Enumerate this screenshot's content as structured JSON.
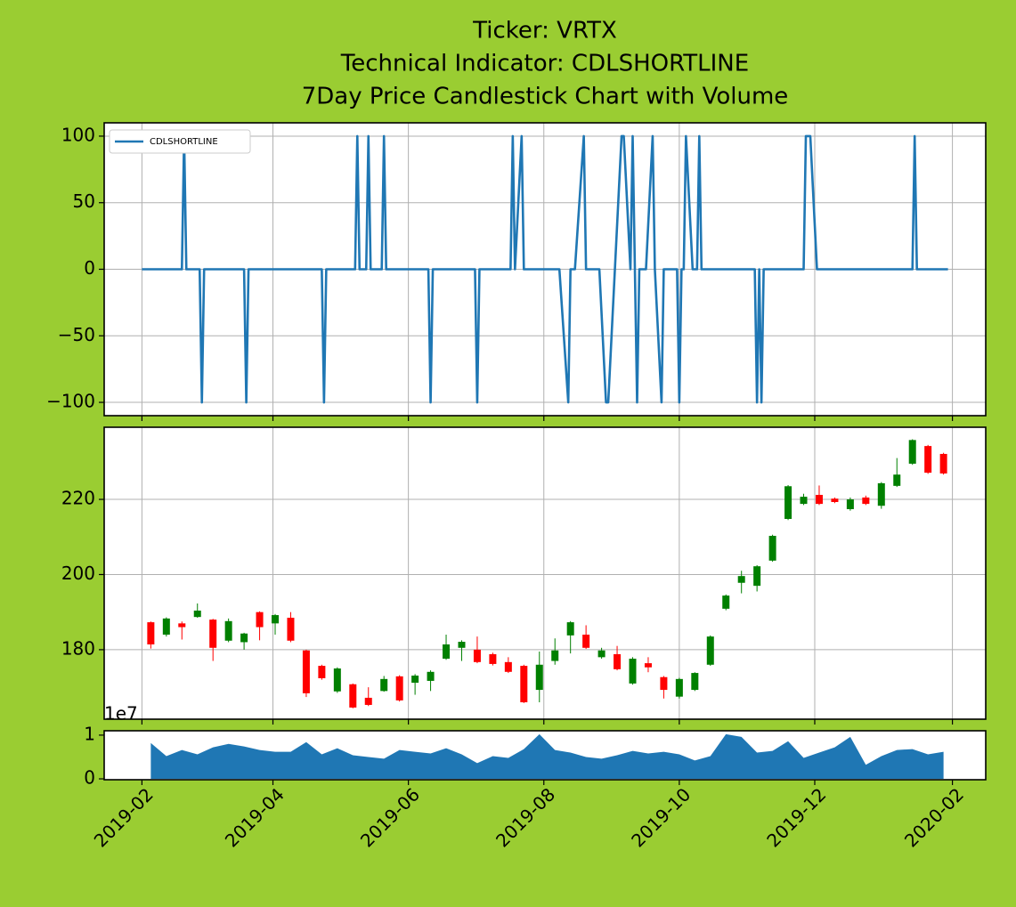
{
  "title": [
    "Ticker: VRTX",
    "Technical Indicator: CDLSHORTLINE",
    "7Day Price Candlestick Chart with Volume"
  ],
  "chart_data": [
    {
      "type": "line",
      "xlim": [
        "2019-01-15",
        "2020-02-16"
      ],
      "ylim": [
        -110,
        110
      ],
      "xticks": [
        "2019-02-01",
        "2019-04-01",
        "2019-06-01",
        "2019-08-01",
        "2019-10-01",
        "2019-12-01",
        "2020-02-01"
      ],
      "yticks": [
        {
          "value": -100,
          "label": "−100"
        },
        {
          "value": -50,
          "label": "−50"
        },
        0,
        50,
        100
      ],
      "grid": true,
      "legend": "upper left",
      "x": [
        "2019-02-01",
        "2019-02-19",
        "2019-02-20",
        "2019-02-21",
        "2019-02-27",
        "2019-02-28",
        "2019-03-01",
        "2019-03-19",
        "2019-03-20",
        "2019-03-21",
        "2019-04-23",
        "2019-04-24",
        "2019-04-25",
        "2019-05-08",
        "2019-05-09",
        "2019-05-10",
        "2019-05-13",
        "2019-05-14",
        "2019-05-15",
        "2019-05-20",
        "2019-05-21",
        "2019-05-22",
        "2019-06-10",
        "2019-06-11",
        "2019-06-12",
        "2019-07-01",
        "2019-07-02",
        "2019-07-03",
        "2019-07-17",
        "2019-07-18",
        "2019-07-19",
        "2019-07-22",
        "2019-07-23",
        "2019-08-08",
        "2019-08-12",
        "2019-08-13",
        "2019-08-15",
        "2019-08-19",
        "2019-08-20",
        "2019-08-26",
        "2019-08-29",
        "2019-08-30",
        "2019-09-05",
        "2019-09-06",
        "2019-09-09",
        "2019-09-10",
        "2019-09-12",
        "2019-09-13",
        "2019-09-16",
        "2019-09-19",
        "2019-09-20",
        "2019-09-23",
        "2019-09-24",
        "2019-09-30",
        "2019-10-01",
        "2019-10-02",
        "2019-10-03",
        "2019-10-04",
        "2019-10-07",
        "2019-10-09",
        "2019-10-10",
        "2019-10-11",
        "2019-11-04",
        "2019-11-05",
        "2019-11-06",
        "2019-11-07",
        "2019-11-08",
        "2019-11-26",
        "2019-11-27",
        "2019-11-29",
        "2019-12-02",
        "2020-01-14",
        "2020-01-15",
        "2020-01-16",
        "2020-01-30"
      ],
      "series": [
        {
          "name": "CDLSHORTLINE",
          "color": "#1f77b4",
          "values": [
            0,
            0,
            100,
            0,
            0,
            -100,
            0,
            0,
            -100,
            0,
            0,
            -100,
            0,
            0,
            100,
            0,
            0,
            100,
            0,
            0,
            100,
            0,
            0,
            -100,
            0,
            0,
            -100,
            0,
            0,
            100,
            0,
            100,
            0,
            0,
            -100,
            0,
            0,
            100,
            0,
            0,
            -100,
            -100,
            100,
            100,
            0,
            100,
            -100,
            0,
            0,
            100,
            0,
            -100,
            0,
            0,
            -100,
            0,
            0,
            100,
            0,
            0,
            100,
            0,
            0,
            -100,
            0,
            -100,
            0,
            0,
            100,
            100,
            0,
            0,
            100,
            0,
            0
          ]
        }
      ]
    },
    {
      "type": "candlestick",
      "xlim": [
        "2019-01-15",
        "2020-02-16"
      ],
      "ylim": [
        161.5,
        239.2
      ],
      "xticks": [
        "2019-02-01",
        "2019-04-01",
        "2019-06-01",
        "2019-08-01",
        "2019-10-01",
        "2019-12-01",
        "2020-02-01"
      ],
      "yticks": [
        180,
        200,
        220
      ],
      "grid": true,
      "up_color": "green",
      "down_color": "red",
      "x": [
        "2019-02-05",
        "2019-02-12",
        "2019-02-19",
        "2019-02-26",
        "2019-03-05",
        "2019-03-12",
        "2019-03-19",
        "2019-03-26",
        "2019-04-02",
        "2019-04-09",
        "2019-04-16",
        "2019-04-23",
        "2019-04-30",
        "2019-05-07",
        "2019-05-14",
        "2019-05-21",
        "2019-05-28",
        "2019-06-04",
        "2019-06-11",
        "2019-06-18",
        "2019-06-25",
        "2019-07-02",
        "2019-07-09",
        "2019-07-16",
        "2019-07-23",
        "2019-07-30",
        "2019-08-06",
        "2019-08-13",
        "2019-08-20",
        "2019-08-27",
        "2019-09-03",
        "2019-09-10",
        "2019-09-17",
        "2019-09-24",
        "2019-10-01",
        "2019-10-08",
        "2019-10-15",
        "2019-10-22",
        "2019-10-29",
        "2019-11-05",
        "2019-11-12",
        "2019-11-19",
        "2019-11-26",
        "2019-12-03",
        "2019-12-10",
        "2019-12-17",
        "2019-12-24",
        "2019-12-31",
        "2020-01-07",
        "2020-01-14",
        "2020-01-21",
        "2020-01-28"
      ],
      "open": [
        187.3,
        184,
        187,
        188.7,
        188,
        182.4,
        182,
        190,
        187,
        188.5,
        179.8,
        175.7,
        168.9,
        170.8,
        167.2,
        169,
        172.9,
        171.2,
        171.7,
        177.6,
        180.5,
        180,
        178.8,
        176.7,
        175.7,
        169.3,
        177,
        183.8,
        184,
        178,
        178.8,
        171,
        176.4,
        172.7,
        167.5,
        169.3,
        176,
        190.9,
        197.8,
        197,
        203.7,
        214.8,
        218.8,
        221.2,
        220.2,
        217.4,
        220.5,
        218.3,
        223.6,
        229.5,
        234.2,
        232.1
      ],
      "high": [
        187.5,
        188.6,
        187.5,
        192.3,
        188.2,
        188.3,
        184.5,
        190.2,
        189.5,
        190,
        180,
        176,
        175.3,
        171,
        170,
        173,
        173.2,
        173.5,
        174.5,
        184,
        182.5,
        183.5,
        179.2,
        178,
        176,
        179.5,
        183,
        187.6,
        186.5,
        180.5,
        181,
        178,
        178,
        173,
        172.5,
        174,
        183.8,
        194.7,
        201,
        202.5,
        210.6,
        223.8,
        221.5,
        223.7,
        220.5,
        220.5,
        221,
        224.6,
        231,
        236,
        234.5,
        232.4
      ],
      "low": [
        180.3,
        183.5,
        182.7,
        188.5,
        177,
        182,
        180,
        182.5,
        184,
        182,
        167.4,
        172,
        168.5,
        164.4,
        165,
        168.8,
        166.2,
        168,
        169,
        177.3,
        177,
        176.4,
        175.8,
        173.8,
        165.8,
        166,
        176,
        179,
        180.2,
        177.6,
        174.5,
        170.7,
        174,
        167,
        167,
        169,
        175.7,
        190.5,
        195,
        195.5,
        203.4,
        214.5,
        218.5,
        218.5,
        219,
        217,
        218.5,
        217.5,
        223.3,
        229.2,
        226.8,
        226.6
      ],
      "close": [
        181.4,
        188.3,
        186,
        190.4,
        180.5,
        187.6,
        184.3,
        186,
        189.2,
        182.4,
        168.4,
        172.4,
        175,
        164.6,
        165.3,
        172.2,
        166.5,
        173.1,
        174.1,
        181.4,
        182.1,
        176.7,
        176.2,
        174.1,
        166,
        176,
        179.8,
        187.3,
        180.5,
        179.8,
        174.8,
        177.6,
        175.3,
        169.3,
        172.2,
        173.8,
        183.5,
        194.4,
        199.6,
        202.2,
        210.3,
        223.5,
        220.7,
        218.8,
        219.3,
        220,
        218.8,
        224.3,
        226.6,
        235.8,
        227.1,
        226.9
      ]
    },
    {
      "type": "area",
      "xlim": [
        "2019-01-15",
        "2020-02-16"
      ],
      "ylim": [
        -0.02,
        1.1
      ],
      "xticks": [
        {
          "value": "2019-02-01",
          "label": "2019-02"
        },
        {
          "value": "2019-04-01",
          "label": "2019-04"
        },
        {
          "value": "2019-06-01",
          "label": "2019-06"
        },
        {
          "value": "2019-08-01",
          "label": "2019-08"
        },
        {
          "value": "2019-10-01",
          "label": "2019-10"
        },
        {
          "value": "2019-12-01",
          "label": "2019-12"
        },
        {
          "value": "2020-02-01",
          "label": "2020-02"
        }
      ],
      "yticks": [
        0,
        1
      ],
      "offset_label": "1e7",
      "grid": false,
      "color": "#1f77b4",
      "x": [
        "2019-02-05",
        "2019-02-12",
        "2019-02-19",
        "2019-02-26",
        "2019-03-05",
        "2019-03-12",
        "2019-03-19",
        "2019-03-26",
        "2019-04-02",
        "2019-04-09",
        "2019-04-16",
        "2019-04-23",
        "2019-04-30",
        "2019-05-07",
        "2019-05-14",
        "2019-05-21",
        "2019-05-28",
        "2019-06-04",
        "2019-06-11",
        "2019-06-18",
        "2019-06-25",
        "2019-07-02",
        "2019-07-09",
        "2019-07-16",
        "2019-07-23",
        "2019-07-30",
        "2019-08-06",
        "2019-08-13",
        "2019-08-20",
        "2019-08-27",
        "2019-09-03",
        "2019-09-10",
        "2019-09-17",
        "2019-09-24",
        "2019-10-01",
        "2019-10-08",
        "2019-10-15",
        "2019-10-22",
        "2019-10-29",
        "2019-11-05",
        "2019-11-12",
        "2019-11-19",
        "2019-11-26",
        "2019-12-03",
        "2019-12-10",
        "2019-12-17",
        "2019-12-24",
        "2019-12-31",
        "2020-01-07",
        "2020-01-14",
        "2020-01-21",
        "2020-01-28"
      ],
      "values": [
        0.82,
        0.52,
        0.66,
        0.56,
        0.72,
        0.8,
        0.74,
        0.66,
        0.62,
        0.62,
        0.84,
        0.56,
        0.7,
        0.54,
        0.5,
        0.46,
        0.66,
        0.62,
        0.58,
        0.7,
        0.56,
        0.36,
        0.52,
        0.48,
        0.68,
        1.02,
        0.66,
        0.6,
        0.5,
        0.46,
        0.54,
        0.64,
        0.58,
        0.62,
        0.56,
        0.42,
        0.52,
        1.02,
        0.96,
        0.6,
        0.64,
        0.86,
        0.48,
        0.6,
        0.72,
        0.96,
        0.32,
        0.52,
        0.66,
        0.68,
        0.56,
        0.62
      ]
    }
  ]
}
